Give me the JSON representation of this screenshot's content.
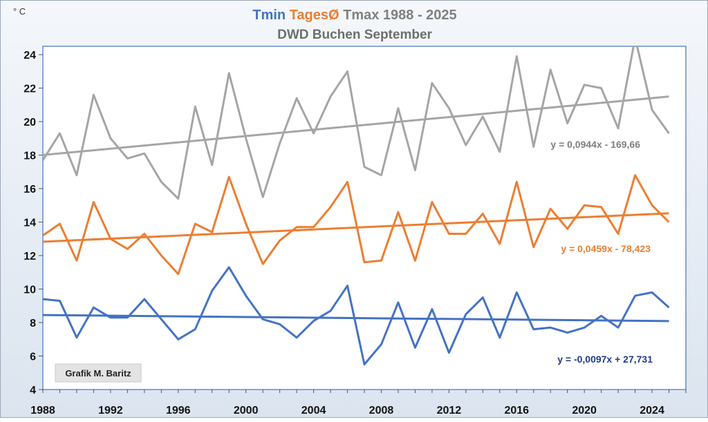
{
  "chart_data": {
    "type": "line",
    "title_parts": [
      {
        "text": "Tmin",
        "color": "#4472C4"
      },
      {
        "text": "TagesØ",
        "color": "#ED7D31"
      },
      {
        "text": "Tmax 1988 - 2025",
        "color": "#808080"
      }
    ],
    "subtitle": "DWD Buchen September",
    "unit_label": "° C",
    "ylim": [
      4,
      24.5
    ],
    "yticks": [
      4,
      6,
      8,
      10,
      12,
      14,
      16,
      18,
      20,
      22,
      24
    ],
    "xlim": [
      1988,
      2026
    ],
    "xticks": [
      1988,
      1992,
      1996,
      2000,
      2004,
      2008,
      2012,
      2016,
      2020,
      2024
    ],
    "x": [
      1988,
      1989,
      1990,
      1991,
      1992,
      1993,
      1994,
      1995,
      1996,
      1997,
      1998,
      1999,
      2000,
      2001,
      2002,
      2003,
      2004,
      2005,
      2006,
      2007,
      2008,
      2009,
      2010,
      2011,
      2012,
      2013,
      2014,
      2015,
      2016,
      2017,
      2018,
      2019,
      2020,
      2021,
      2022,
      2023,
      2024,
      2025
    ],
    "series": [
      {
        "name": "Tmax",
        "color": "#A5A5A5",
        "values": [
          17.7,
          19.3,
          16.8,
          21.6,
          19.0,
          17.8,
          18.1,
          16.4,
          15.4,
          20.9,
          17.4,
          22.9,
          19.0,
          15.5,
          18.7,
          21.4,
          19.3,
          21.5,
          23.0,
          17.3,
          16.8,
          20.8,
          17.1,
          22.3,
          20.8,
          18.6,
          20.3,
          18.2,
          23.9,
          18.5,
          23.1,
          19.9,
          22.2,
          22.0,
          19.6,
          25.0,
          20.7,
          19.3
        ],
        "trend": {
          "slope": 0.0944,
          "intercept": -169.66,
          "label": "y = 0,0944x - 169,66",
          "label_color": "#7F7F7F"
        }
      },
      {
        "name": "TagesØ",
        "color": "#ED7D31",
        "values": [
          13.2,
          13.9,
          11.7,
          15.2,
          13.0,
          12.4,
          13.3,
          12.0,
          10.9,
          13.9,
          13.4,
          16.7,
          13.9,
          11.5,
          12.9,
          13.7,
          13.7,
          14.9,
          16.4,
          11.6,
          11.7,
          14.6,
          11.7,
          15.2,
          13.3,
          13.3,
          14.5,
          12.7,
          16.4,
          12.5,
          14.8,
          13.6,
          15.0,
          14.9,
          13.3,
          16.8,
          15.0,
          14.0
        ],
        "trend": {
          "slope": 0.0459,
          "intercept": -78.423,
          "label": "y = 0,0459x - 78,423",
          "label_color": "#ED7D31"
        }
      },
      {
        "name": "Tmin",
        "color": "#4472C4",
        "values": [
          9.4,
          9.3,
          7.1,
          8.9,
          8.3,
          8.3,
          9.4,
          8.2,
          7.0,
          7.6,
          9.9,
          11.3,
          9.6,
          8.2,
          7.9,
          7.1,
          8.1,
          8.7,
          10.2,
          5.5,
          6.7,
          9.2,
          6.5,
          8.8,
          6.2,
          8.5,
          9.5,
          7.1,
          9.8,
          7.6,
          7.7,
          7.4,
          7.7,
          8.4,
          7.7,
          9.6,
          9.8,
          8.9
        ],
        "trend": {
          "slope": -0.0097,
          "intercept": 27.731,
          "label": "y = -0,0097x + 27,731",
          "label_color": "#1F3C88"
        }
      }
    ],
    "annotation": "Grafik M. Baritz"
  }
}
